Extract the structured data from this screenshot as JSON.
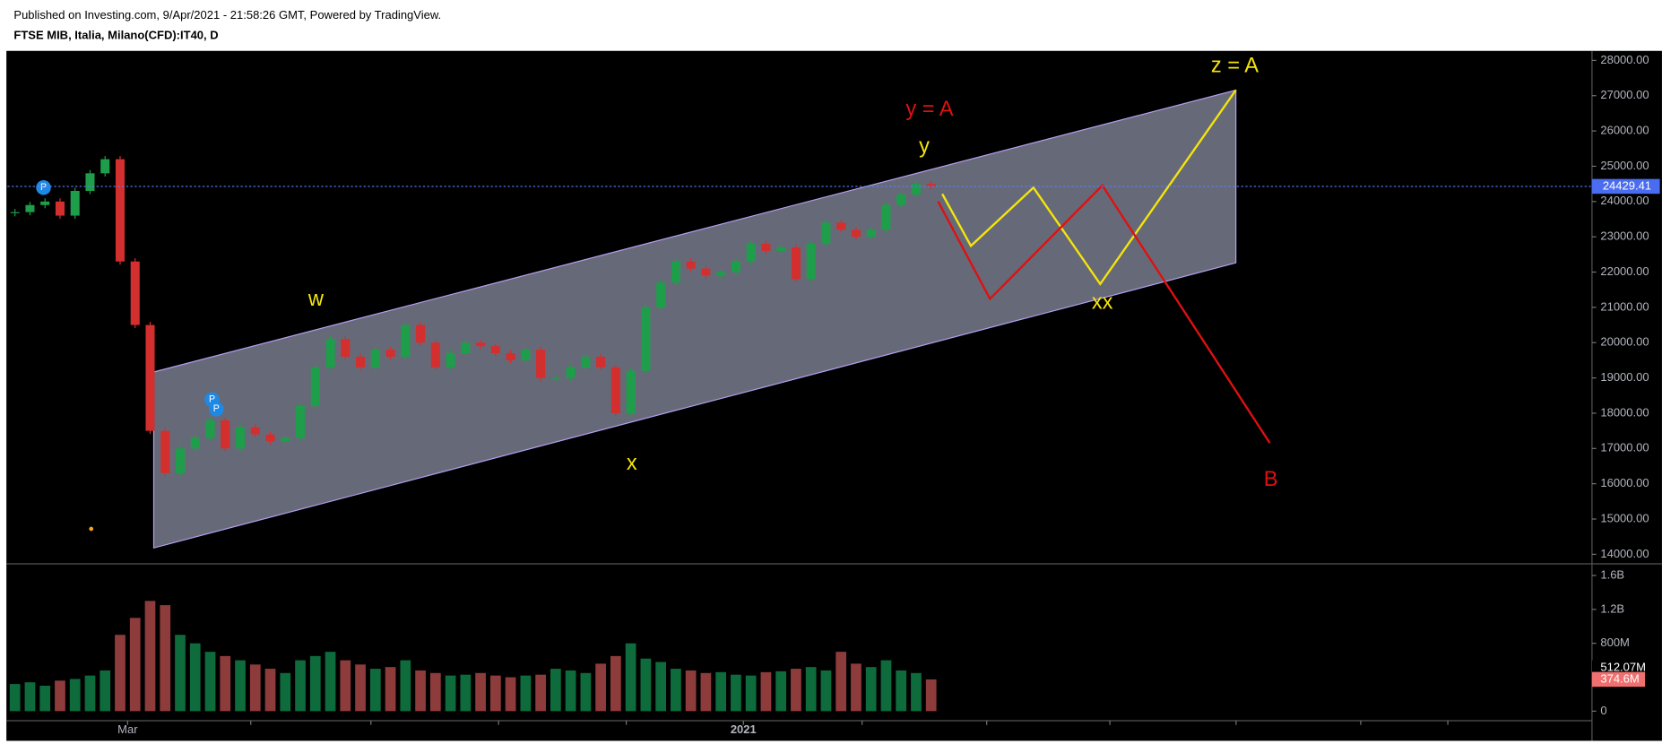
{
  "chart_data": {
    "type": "candlestick",
    "subtitle": "Published on Investing.com, 9/Apr/2021 - 21:58:26 GMT, Powered by TradingView.",
    "title": "FTSE MIB, Italia, Milano(CFD):IT40, D",
    "close": [
      23700,
      23900,
      24000,
      23600,
      24300,
      24800,
      25200,
      22300,
      20500,
      17500,
      16300,
      17000,
      17300,
      17800,
      17000,
      17600,
      17400,
      17200,
      17300,
      18200,
      19300,
      20100,
      19600,
      19300,
      19800,
      19600,
      20500,
      20000,
      19300,
      19700,
      20000,
      19900,
      19700,
      19500,
      19800,
      19000,
      19000,
      19300,
      19600,
      19300,
      18000,
      19200,
      21000,
      21700,
      22300,
      22100,
      21900,
      22000,
      22300,
      22800,
      22600,
      22700,
      21800,
      22800,
      23400,
      23200,
      23000,
      23200,
      23900,
      24200,
      24500,
      24429.41
    ],
    "volume": [
      320000000,
      340000000,
      300000000,
      360000000,
      380000000,
      420000000,
      480000000,
      900000000,
      1100000000,
      1300000000,
      1250000000,
      900000000,
      800000000,
      700000000,
      650000000,
      600000000,
      550000000,
      500000000,
      450000000,
      600000000,
      650000000,
      700000000,
      600000000,
      550000000,
      500000000,
      520000000,
      600000000,
      480000000,
      450000000,
      420000000,
      430000000,
      450000000,
      420000000,
      400000000,
      420000000,
      430000000,
      500000000,
      480000000,
      450000000,
      560000000,
      650000000,
      800000000,
      620000000,
      580000000,
      500000000,
      480000000,
      450000000,
      460000000,
      430000000,
      420000000,
      460000000,
      470000000,
      500000000,
      520000000,
      480000000,
      700000000,
      560000000,
      520000000,
      600000000,
      480000000,
      450000000,
      374600000
    ],
    "up_color": "#1e9e4a",
    "down_color": "#d32f2f",
    "volume_up_color": "#0d6b3c",
    "volume_down_color": "#8e3b3b",
    "xlim": [
      0,
      105.5
    ],
    "xticks": [
      {
        "value": 8,
        "label": "Mar"
      },
      {
        "value": 16.2,
        "label": null
      },
      {
        "value": 24.2,
        "label": null
      },
      {
        "value": 32.7,
        "label": null
      },
      {
        "value": 41.2,
        "label": null
      },
      {
        "value": 49,
        "label": "2021"
      },
      {
        "value": 56.9,
        "label": null
      },
      {
        "value": 65.2,
        "label": null
      },
      {
        "value": 73.4,
        "label": null
      },
      {
        "value": 81.8,
        "label": null
      },
      {
        "value": 90.1,
        "label": null
      },
      {
        "value": 95.9,
        "label": null
      }
    ],
    "ylim": [
      13760,
      28210
    ],
    "yticks": [
      {
        "value": 14000,
        "label": "14000.00"
      },
      {
        "value": 15000,
        "label": "15000.00"
      },
      {
        "value": 16000,
        "label": "16000.00"
      },
      {
        "value": 17000,
        "label": "17000.00"
      },
      {
        "value": 18000,
        "label": "18000.00"
      },
      {
        "value": 19000,
        "label": "19000.00"
      },
      {
        "value": 20000,
        "label": "20000.00"
      },
      {
        "value": 21000,
        "label": "21000.00"
      },
      {
        "value": 22000,
        "label": "22000.00"
      },
      {
        "value": 23000,
        "label": "23000.00"
      },
      {
        "value": 24000,
        "label": "24000.00"
      },
      {
        "value": 25000,
        "label": "25000.00"
      },
      {
        "value": 26000,
        "label": "26000.00"
      },
      {
        "value": 27000,
        "label": "27000.00"
      },
      {
        "value": 28000,
        "label": "28000.00"
      }
    ],
    "last_price": 24429.41,
    "volume_ylim": [
      -112500000,
      1725000000
    ],
    "volume_yticks": [
      {
        "value": 0,
        "label": "0"
      },
      {
        "value": 800000000,
        "label": "800M"
      },
      {
        "value": 1200000000,
        "label": "1.2B"
      },
      {
        "value": 1600000000,
        "label": "1.6B"
      }
    ],
    "volume_ma_label": {
      "value": 512070000,
      "label": "512.07M"
    },
    "last_volume_label": {
      "value": 374600000,
      "label": "374.6M"
    },
    "annotations": [
      {
        "text": "w",
        "color": "#f5e50a"
      },
      {
        "text": "x",
        "color": "#f5e50a"
      },
      {
        "text": "y",
        "color": "#f5e50a"
      },
      {
        "text": "xx",
        "color": "#f5e50a"
      },
      {
        "text": "y = A",
        "color": "#e01010"
      },
      {
        "text": "z = A",
        "color": "#f5e50a"
      },
      {
        "text": "B",
        "color": "#e01010"
      }
    ]
  }
}
